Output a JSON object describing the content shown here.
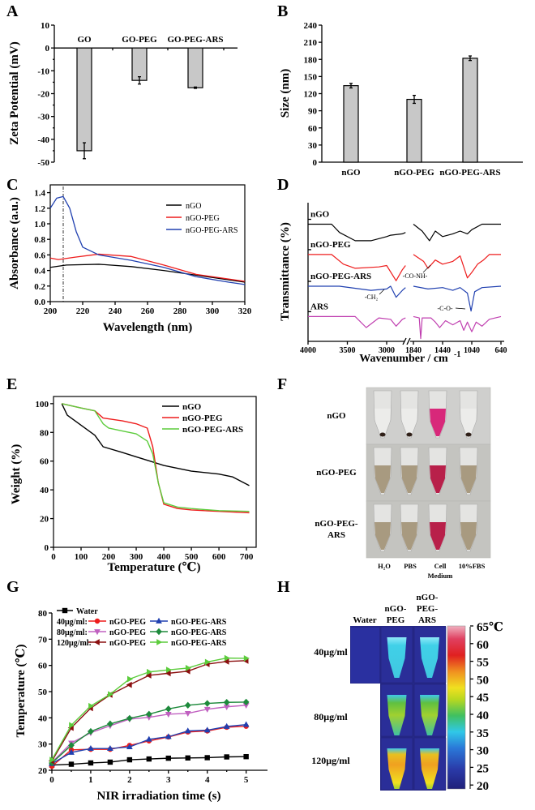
{
  "panels": {
    "letters": [
      "A",
      "B",
      "C",
      "D",
      "E",
      "F",
      "G",
      "H"
    ]
  },
  "colors": {
    "black": "#000000",
    "red": "#ee1c1c",
    "blue": "#2040b0",
    "magenta": "#c040b0",
    "green": "#1e8a3c",
    "lightgreen": "#5ccc3c",
    "darkred": "#8b1010",
    "violet": "#c060c0",
    "bar": "#c8c8c8"
  },
  "chart_data": [
    {
      "panel": "A",
      "type": "bar",
      "categories": [
        "GO",
        "GO-PEG",
        "GO-PEG-ARS"
      ],
      "values": [
        -45,
        -14.2,
        -17.4
      ],
      "errors": [
        3.5,
        1.6,
        0.3
      ],
      "ylabel": "Zeta Potential (mV)",
      "xlabel": "",
      "ylim": [
        -50,
        10
      ],
      "yticks": [
        "10",
        "0",
        "-10",
        "-20",
        "-30",
        "-40",
        "-50"
      ],
      "grid": false
    },
    {
      "panel": "B",
      "type": "bar",
      "categories": [
        "nGO",
        "nGO-PEG",
        "nGO-PEG-ARS"
      ],
      "values": [
        134,
        110,
        182
      ],
      "errors": [
        4,
        7,
        4
      ],
      "ylabel": "Size (nm)",
      "xlabel": "",
      "ylim": [
        0,
        240
      ],
      "yticks": [
        "0",
        "30",
        "60",
        "90",
        "120",
        "150",
        "180",
        "210",
        "240"
      ],
      "grid": false
    },
    {
      "panel": "C",
      "type": "line",
      "xlabel": "Wavelength (nm)",
      "ylabel": "Absorbance (a.u.)",
      "xlim": [
        200,
        320
      ],
      "ylim": [
        0,
        1.4
      ],
      "xticks": [
        "200",
        "220",
        "240",
        "260",
        "280",
        "300",
        "320"
      ],
      "yticks": [
        "0.0",
        "0.2",
        "0.4",
        "0.6",
        "0.8",
        "1.0",
        "1.2",
        "1.4"
      ],
      "legend": "top-right",
      "grid": false,
      "reference_line_x": 208,
      "series": [
        {
          "name": "nGO",
          "color": "#000000",
          "x": [
            200,
            210,
            230,
            250,
            270,
            290,
            310,
            320
          ],
          "y": [
            0.44,
            0.47,
            0.48,
            0.45,
            0.4,
            0.34,
            0.28,
            0.25
          ]
        },
        {
          "name": "nGO-PEG",
          "color": "#ee1c1c",
          "x": [
            200,
            205,
            215,
            230,
            250,
            270,
            290,
            310,
            320
          ],
          "y": [
            0.56,
            0.54,
            0.57,
            0.61,
            0.58,
            0.47,
            0.35,
            0.29,
            0.26
          ]
        },
        {
          "name": "nGO-PEG-ARS",
          "color": "#2040b0",
          "x": [
            200,
            204,
            208,
            212,
            216,
            220,
            230,
            250,
            270,
            290,
            310,
            320
          ],
          "y": [
            1.2,
            1.33,
            1.35,
            1.2,
            0.9,
            0.7,
            0.6,
            0.53,
            0.44,
            0.32,
            0.25,
            0.22
          ]
        }
      ]
    },
    {
      "panel": "D",
      "type": "line",
      "xlabel": "Wavenumber / cm",
      "xlabel_sup": "-1",
      "ylabel": "Transmittance (%)",
      "xticks": [
        "4000",
        "3500",
        "3000",
        "1840",
        "1440",
        "1040",
        "640"
      ],
      "axis_break": true,
      "grid": false,
      "annotations": [
        "-CO-NH-",
        "-CH₂",
        "-C-O-"
      ],
      "series": [
        {
          "name": "nGO",
          "color": "#000000",
          "x": [
            4000,
            3700,
            3600,
            3400,
            3200,
            3000,
            2950,
            2800,
            2760,
            1900,
            1840,
            1720,
            1620,
            1540,
            1440,
            1300,
            1200,
            1100,
            1040,
            900,
            640
          ],
          "y": [
            8.5,
            8.5,
            7.9,
            7.3,
            7.3,
            7.6,
            7.7,
            7.8,
            7.9,
            null,
            8.5,
            8.0,
            7.3,
            8.0,
            7.6,
            7.8,
            8.0,
            7.8,
            8.1,
            8.5,
            8.5
          ]
        },
        {
          "name": "nGO-PEG",
          "color": "#ee1c1c",
          "x": [
            4000,
            3700,
            3550,
            3400,
            3100,
            3000,
            2880,
            2800,
            2760,
            1900,
            1840,
            1700,
            1640,
            1540,
            1440,
            1300,
            1200,
            1100,
            1040,
            960,
            880,
            800,
            640
          ],
          "y": [
            6.3,
            6.3,
            5.6,
            5.3,
            5.4,
            5.5,
            4.4,
            5.2,
            5.5,
            null,
            6.3,
            5.8,
            5.3,
            5.9,
            5.6,
            5.8,
            6.2,
            4.6,
            5.0,
            5.6,
            5.9,
            6.3,
            6.3
          ]
        },
        {
          "name": "nGO-PEG-ARS",
          "color": "#2040b0",
          "x": [
            4000,
            3600,
            3200,
            3000,
            2950,
            2880,
            2800,
            2760,
            1900,
            1840,
            1640,
            1440,
            1300,
            1200,
            1100,
            1050,
            1000,
            900,
            640
          ],
          "y": [
            4.0,
            4.0,
            3.7,
            3.8,
            4.0,
            3.2,
            3.7,
            3.9,
            null,
            4.0,
            3.8,
            3.9,
            3.7,
            3.9,
            3.5,
            2.2,
            3.6,
            3.9,
            4.0
          ]
        },
        {
          "name": "ARS",
          "color": "#c040b0",
          "x": [
            4000,
            3400,
            3260,
            3100,
            2950,
            2880,
            2800,
            2760,
            1900,
            1840,
            1760,
            1740,
            1720,
            1600,
            1540,
            1480,
            1400,
            1300,
            1200,
            1150,
            1100,
            1040,
            980,
            900,
            800,
            640
          ],
          "y": [
            1.8,
            1.8,
            1.0,
            1.7,
            1.6,
            1.1,
            1.6,
            1.7,
            null,
            1.8,
            1.7,
            0.2,
            1.7,
            1.7,
            1.4,
            1.0,
            1.5,
            1.2,
            1.5,
            0.8,
            1.4,
            0.7,
            1.4,
            1.1,
            1.6,
            1.8
          ]
        }
      ]
    },
    {
      "panel": "E",
      "type": "line",
      "xlabel": "Temperature (℃)",
      "ylabel": "Weight (%)",
      "xlim": [
        0,
        735
      ],
      "ylim": [
        0,
        105
      ],
      "xticks": [
        "0",
        "100",
        "200",
        "300",
        "400",
        "500",
        "600",
        "700"
      ],
      "yticks": [
        "0",
        "20",
        "40",
        "60",
        "80",
        "100"
      ],
      "legend": "top-right",
      "grid": false,
      "series": [
        {
          "name": "nGO",
          "color": "#000000",
          "x": [
            30,
            50,
            100,
            150,
            180,
            250,
            300,
            350,
            400,
            500,
            600,
            650,
            710
          ],
          "y": [
            100,
            92,
            85,
            78,
            70,
            66,
            63,
            60,
            57,
            53,
            51,
            49,
            43
          ]
        },
        {
          "name": "nGO-PEG",
          "color": "#ee1c1c",
          "x": [
            30,
            100,
            150,
            180,
            250,
            300,
            340,
            360,
            380,
            400,
            450,
            500,
            600,
            710
          ],
          "y": [
            100,
            97,
            95,
            90,
            88,
            86,
            83,
            70,
            45,
            30,
            27,
            26,
            25,
            24
          ]
        },
        {
          "name": "nGO-PEG-ARS",
          "color": "#5ccc3c",
          "x": [
            30,
            100,
            150,
            180,
            200,
            250,
            300,
            340,
            360,
            380,
            400,
            450,
            500,
            600,
            710
          ],
          "y": [
            100,
            97,
            95,
            86,
            83,
            81,
            79,
            74,
            65,
            45,
            31,
            28,
            27,
            25.5,
            25
          ]
        }
      ]
    },
    {
      "panel": "G",
      "type": "line",
      "xlabel": "NIR irradiation time (s)",
      "ylabel": "Temperature (℃)",
      "xlim": [
        0,
        5.5
      ],
      "ylim": [
        20,
        80
      ],
      "xticks": [
        "0",
        "1",
        "2",
        "3",
        "4",
        "5"
      ],
      "yticks": [
        "20",
        "30",
        "40",
        "50",
        "60",
        "70",
        "80"
      ],
      "legend": "top-left",
      "grid": false,
      "legend_groups": [
        "40μg/ml:",
        "80μg/ml:",
        "120μg/ml:"
      ],
      "x": [
        0,
        0.5,
        1,
        1.5,
        2,
        2.5,
        3,
        3.5,
        4,
        4.5,
        5
      ],
      "series": [
        {
          "name": "Water",
          "group": "",
          "color": "#000000",
          "marker": "square",
          "values": [
            22,
            22.3,
            22.8,
            23.1,
            24,
            24.3,
            24.6,
            24.7,
            24.8,
            25.1,
            25.2
          ]
        },
        {
          "name": "nGO-PEG",
          "group": "40μg/ml:",
          "color": "#ee1c1c",
          "marker": "circle",
          "values": [
            21.5,
            27.8,
            28,
            28,
            29.5,
            31.2,
            32.7,
            34.6,
            35,
            36.4,
            36.8
          ]
        },
        {
          "name": "nGO-PEG-ARS",
          "group": "40μg/ml:",
          "color": "#2040b0",
          "marker": "triangle-up",
          "values": [
            22.5,
            26.8,
            28.3,
            28.3,
            28.9,
            31.8,
            32.8,
            35,
            35.3,
            36.7,
            37.4
          ]
        },
        {
          "name": "nGO-PEG",
          "group": "80μg/ml:",
          "color": "#c060c0",
          "marker": "triangle-down",
          "values": [
            23,
            30.4,
            34.3,
            37,
            39.5,
            40.2,
            41.4,
            41.7,
            43.3,
            44.2,
            44.8
          ]
        },
        {
          "name": "nGO-PEG-ARS",
          "group": "80μg/ml:",
          "color": "#1e8a3c",
          "marker": "diamond",
          "values": [
            22.8,
            29.5,
            34.8,
            37.7,
            39.8,
            41.4,
            43.4,
            44.8,
            45.5,
            45.9,
            46
          ]
        },
        {
          "name": "nGO-PEG",
          "group": "120μg/ml:",
          "color": "#8b1010",
          "marker": "triangle-left",
          "values": [
            23.5,
            36.2,
            43.7,
            48.8,
            52.6,
            56.2,
            57,
            57.8,
            60.5,
            61.5,
            61.8
          ]
        },
        {
          "name": "nGO-PEG-ARS",
          "group": "120μg/ml:",
          "color": "#5ccc3c",
          "marker": "triangle-right",
          "values": [
            24,
            37.2,
            44.5,
            49,
            54.8,
            57.5,
            58.3,
            59,
            61.3,
            62.8,
            62.7
          ]
        }
      ]
    }
  ],
  "photo_panel": {
    "rows": [
      [
        "nGO"
      ],
      [
        "nGO-PEG"
      ],
      [
        "nGO-PEG-",
        "ARS"
      ]
    ],
    "columns": [
      [
        "H₂O"
      ],
      [
        "PBS"
      ],
      [
        "Cell",
        "Medium"
      ],
      [
        "10%FBS"
      ]
    ]
  },
  "thermal_panel": {
    "columns": [
      [
        "Water"
      ],
      [
        "nGO-",
        "PEG"
      ],
      [
        "nGO-",
        "PEG-",
        "ARS"
      ]
    ],
    "rows": [
      "40μg/ml",
      "80μg/ml",
      "120μg/ml"
    ],
    "colorbar_ticks": [
      "65℃",
      "60",
      "55",
      "50",
      "45",
      "40",
      "35",
      "30",
      "25",
      "20"
    ]
  }
}
